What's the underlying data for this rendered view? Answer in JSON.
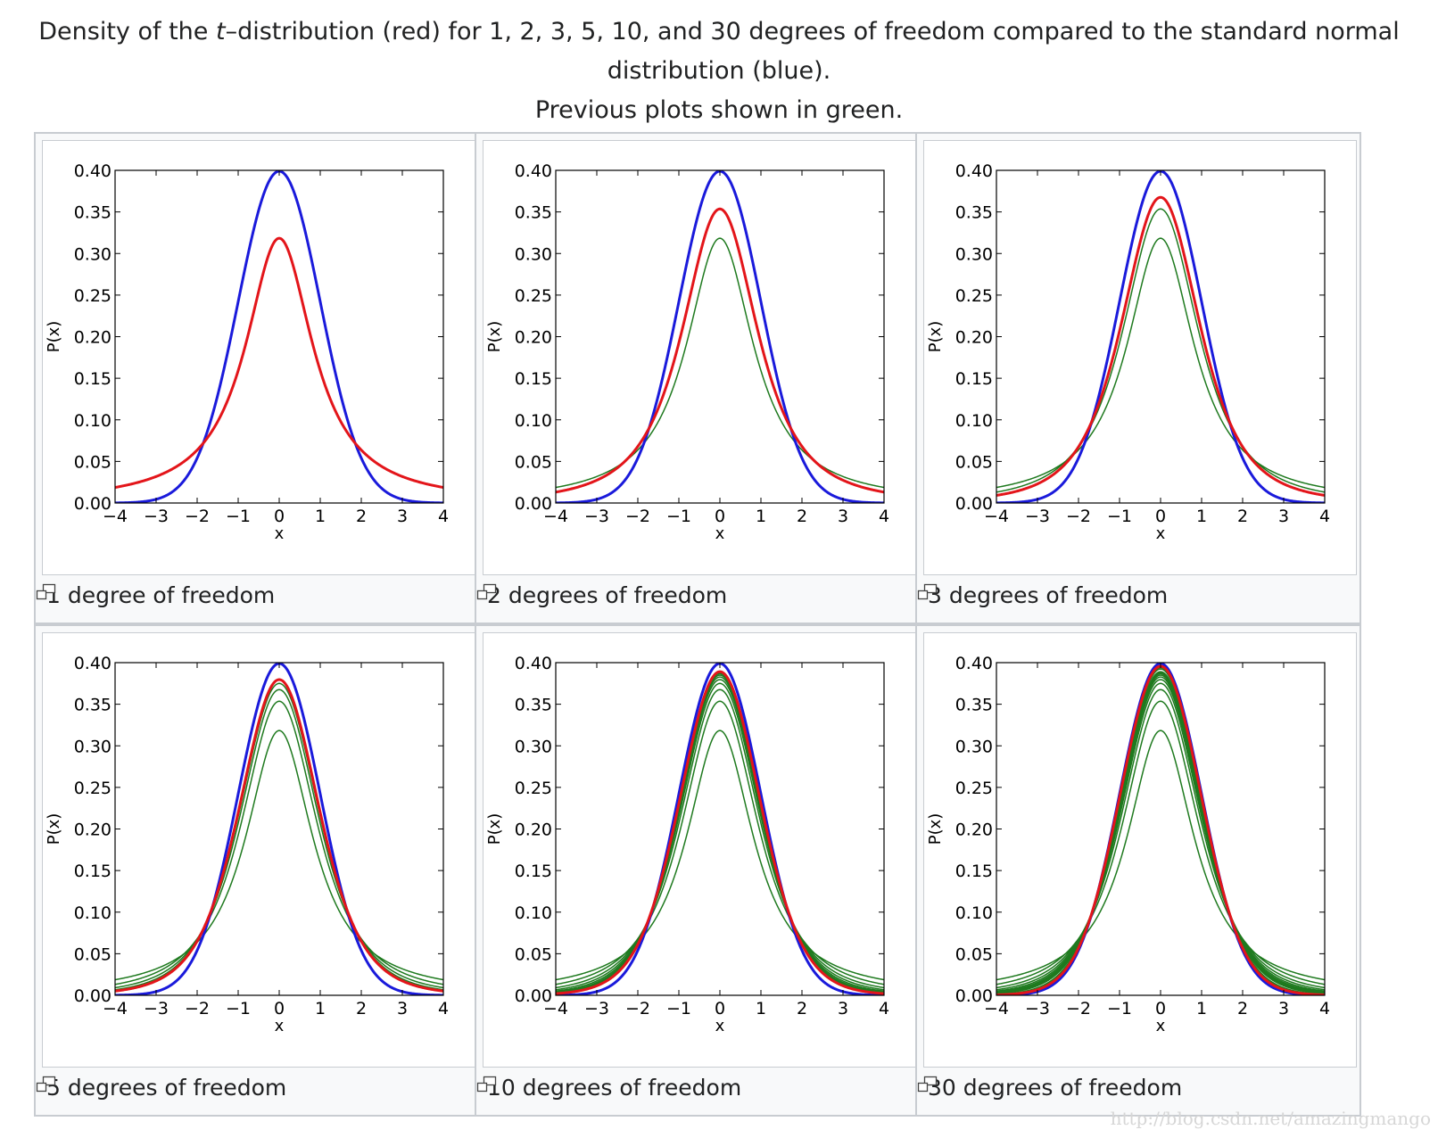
{
  "caption": {
    "line1_prefix": "Density of the ",
    "line1_italic": "t",
    "line1_suffix": "–distribution (red) for 1, 2, 3, 5, 10, and 30 degrees of freedom compared to the standard normal distribution (blue).",
    "line2": "Previous plots shown in green."
  },
  "colors": {
    "normal": "#1a1adb",
    "t": "#e3151a",
    "previous": "#1f7a1f"
  },
  "watermark": "http://blog.csdn.net/amazingmango",
  "chart_data": [
    {
      "type": "line",
      "title": "1 degree of freedom",
      "df": 1,
      "previous_df": [],
      "xlabel": "x",
      "ylabel": "P(x)",
      "xlim": [
        -4,
        4
      ],
      "ylim": [
        0,
        0.4
      ],
      "xticks": [
        "−4",
        "−3",
        "−2",
        "−1",
        "0",
        "1",
        "2",
        "3",
        "4"
      ],
      "yticks": [
        "0.00",
        "0.05",
        "0.10",
        "0.15",
        "0.20",
        "0.25",
        "0.30",
        "0.35",
        "0.40"
      ],
      "series": [
        {
          "name": "standard normal",
          "color": "blue",
          "peak": 0.399
        },
        {
          "name": "t, 1 df",
          "color": "red",
          "peak": 0.318
        }
      ]
    },
    {
      "type": "line",
      "title": "2 degrees of freedom",
      "df": 2,
      "previous_df": [
        1
      ],
      "xlabel": "x",
      "ylabel": "P(x)",
      "xlim": [
        -4,
        4
      ],
      "ylim": [
        0,
        0.4
      ],
      "xticks": [
        "−4",
        "−3",
        "−2",
        "−1",
        "0",
        "1",
        "2",
        "3",
        "4"
      ],
      "yticks": [
        "0.00",
        "0.05",
        "0.10",
        "0.15",
        "0.20",
        "0.25",
        "0.30",
        "0.35",
        "0.40"
      ],
      "series": [
        {
          "name": "standard normal",
          "color": "blue",
          "peak": 0.399
        },
        {
          "name": "t, 2 df",
          "color": "red",
          "peak": 0.354
        },
        {
          "name": "t, 1 df (previous)",
          "color": "green",
          "peak": 0.318
        }
      ]
    },
    {
      "type": "line",
      "title": "3 degrees of freedom",
      "df": 3,
      "previous_df": [
        1,
        2
      ],
      "xlabel": "x",
      "ylabel": "P(x)",
      "xlim": [
        -4,
        4
      ],
      "ylim": [
        0,
        0.4
      ],
      "xticks": [
        "−4",
        "−3",
        "−2",
        "−1",
        "0",
        "1",
        "2",
        "3",
        "4"
      ],
      "yticks": [
        "0.00",
        "0.05",
        "0.10",
        "0.15",
        "0.20",
        "0.25",
        "0.30",
        "0.35",
        "0.40"
      ],
      "series": [
        {
          "name": "standard normal",
          "color": "blue",
          "peak": 0.399
        },
        {
          "name": "t, 3 df",
          "color": "red",
          "peak": 0.368
        },
        {
          "name": "t, 1 df (previous)",
          "color": "green",
          "peak": 0.318
        },
        {
          "name": "t, 2 df (previous)",
          "color": "green",
          "peak": 0.354
        }
      ]
    },
    {
      "type": "line",
      "title": "5 degrees of freedom",
      "df": 5,
      "previous_df": [
        1,
        2,
        3,
        4
      ],
      "xlabel": "x",
      "ylabel": "P(x)",
      "xlim": [
        -4,
        4
      ],
      "ylim": [
        0,
        0.4
      ],
      "xticks": [
        "−4",
        "−3",
        "−2",
        "−1",
        "0",
        "1",
        "2",
        "3",
        "4"
      ],
      "yticks": [
        "0.00",
        "0.05",
        "0.10",
        "0.15",
        "0.20",
        "0.25",
        "0.30",
        "0.35",
        "0.40"
      ],
      "series": [
        {
          "name": "standard normal",
          "color": "blue",
          "peak": 0.399
        },
        {
          "name": "t, 5 df",
          "color": "red",
          "peak": 0.38
        },
        {
          "name": "t, 1 df (previous)",
          "color": "green",
          "peak": 0.318
        },
        {
          "name": "t, 2 df (previous)",
          "color": "green",
          "peak": 0.354
        },
        {
          "name": "t, 3 df (previous)",
          "color": "green",
          "peak": 0.368
        },
        {
          "name": "t, 4 df (previous)",
          "color": "green",
          "peak": 0.375
        }
      ]
    },
    {
      "type": "line",
      "title": "10 degrees of freedom",
      "df": 10,
      "previous_df": [
        1,
        2,
        3,
        4,
        5,
        6,
        7,
        8,
        9
      ],
      "xlabel": "x",
      "ylabel": "P(x)",
      "xlim": [
        -4,
        4
      ],
      "ylim": [
        0,
        0.4
      ],
      "xticks": [
        "−4",
        "−3",
        "−2",
        "−1",
        "0",
        "1",
        "2",
        "3",
        "4"
      ],
      "yticks": [
        "0.00",
        "0.05",
        "0.10",
        "0.15",
        "0.20",
        "0.25",
        "0.30",
        "0.35",
        "0.40"
      ],
      "series": [
        {
          "name": "standard normal",
          "color": "blue",
          "peak": 0.399
        },
        {
          "name": "t, 10 df",
          "color": "red",
          "peak": 0.389
        },
        {
          "name": "t, 1–9 df (previous)",
          "color": "green"
        }
      ]
    },
    {
      "type": "line",
      "title": "30 degrees of freedom",
      "df": 30,
      "previous_df": [
        1,
        2,
        3,
        4,
        5,
        6,
        7,
        8,
        9,
        10,
        15,
        20,
        25
      ],
      "xlabel": "x",
      "ylabel": "P(x)",
      "xlim": [
        -4,
        4
      ],
      "ylim": [
        0,
        0.4
      ],
      "xticks": [
        "−4",
        "−3",
        "−2",
        "−1",
        "0",
        "1",
        "2",
        "3",
        "4"
      ],
      "yticks": [
        "0.00",
        "0.05",
        "0.10",
        "0.15",
        "0.20",
        "0.25",
        "0.30",
        "0.35",
        "0.40"
      ],
      "series": [
        {
          "name": "standard normal",
          "color": "blue",
          "peak": 0.399
        },
        {
          "name": "t, 30 df",
          "color": "red",
          "peak": 0.396
        },
        {
          "name": "t, earlier df (previous)",
          "color": "green"
        }
      ]
    }
  ]
}
